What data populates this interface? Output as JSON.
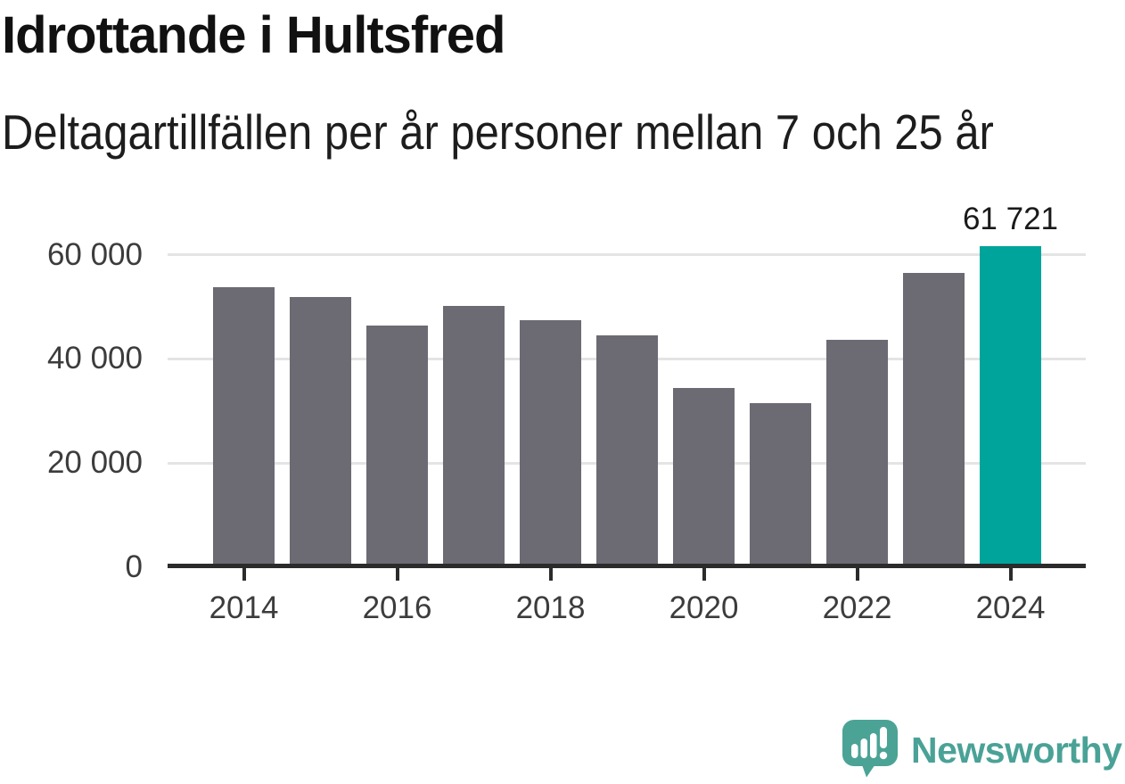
{
  "header": {
    "title": "Idrottande i Hultsfred",
    "subtitle": "Deltagartillfällen per år personer mellan 7 och 25 år"
  },
  "chart_data": {
    "type": "bar",
    "title": "Idrottande i Hultsfred",
    "subtitle": "Deltagartillfällen per år personer mellan 7 och 25 år",
    "categories": [
      2014,
      2015,
      2016,
      2017,
      2018,
      2019,
      2020,
      2021,
      2022,
      2023,
      2024
    ],
    "values": [
      53700,
      51800,
      46400,
      50100,
      47500,
      44500,
      34500,
      31500,
      43600,
      56500,
      61721
    ],
    "highlight_index": 10,
    "annotation": {
      "index": 10,
      "label": "61 721"
    },
    "y_ticks": [
      0,
      20000,
      40000,
      60000
    ],
    "y_tick_labels": [
      "0",
      "20 000",
      "40 000",
      "60 000"
    ],
    "x_tick_years": [
      2014,
      2016,
      2018,
      2020,
      2022,
      2024
    ],
    "x_tick_labels": [
      "2014",
      "2016",
      "2018",
      "2020",
      "2022",
      "2024"
    ],
    "ylim": [
      0,
      63000
    ],
    "grid": true,
    "legend_position": "none",
    "bar_color": "#6C6A72",
    "highlight_color": "#00A49B",
    "gridline_color": "#E4E4E4",
    "axis_color": "#2B2B2B"
  },
  "footer": {
    "brand": "Newsworthy",
    "brand_color": "#4AA297",
    "logo_icon": "newsworthy-speech-bubble-chart-icon"
  }
}
